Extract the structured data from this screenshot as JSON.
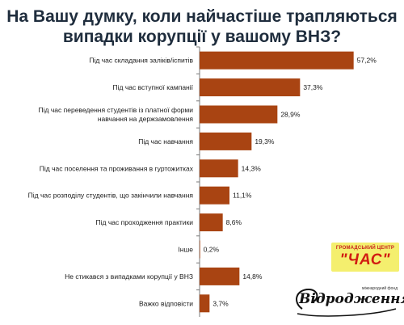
{
  "title_lines": [
    "На Вашу думку, коли найчастіше трапляються",
    "випадки корупції у вашому ВНЗ?"
  ],
  "chart_data": {
    "type": "bar",
    "orientation": "horizontal",
    "title": "На Вашу думку, коли найчастіше трапляються випадки корупції у вашому ВНЗ?",
    "categories": [
      [
        "Під час складання заліків/іспитів"
      ],
      [
        "Під час вступної кампанії"
      ],
      [
        "Під час переведення студентів із платної форми",
        "навчання на держзамовлення"
      ],
      [
        "Під час навчання"
      ],
      [
        "Під час поселення та проживання в гуртожитках"
      ],
      [
        "Під час розподілу студентів, що закінчили навчання"
      ],
      [
        "Під час проходження практики"
      ],
      [
        "Інше"
      ],
      [
        "Не стикався з випадками корупції у ВНЗ"
      ],
      [
        "Важко відповісти"
      ]
    ],
    "values": [
      57.2,
      37.3,
      28.9,
      19.3,
      14.3,
      11.1,
      8.6,
      0.2,
      14.8,
      3.7
    ],
    "value_labels": [
      "57,2%",
      "37,3%",
      "28,9%",
      "19,3%",
      "14,3%",
      "11,1%",
      "8,6%",
      "0,2%",
      "14,8%",
      "3,7%"
    ],
    "xlim": [
      0,
      60
    ],
    "bar_color": "#a94412",
    "grid": false,
    "legend": "none"
  },
  "logos": {
    "chas_top": "ГРОМАДСЬКИЙ ЦЕНТР",
    "chas_main": "\"ЧАС\"",
    "vidrodzhennia_main": "Відродження",
    "vidrodzhennia_small": "міжнародний фонд"
  }
}
